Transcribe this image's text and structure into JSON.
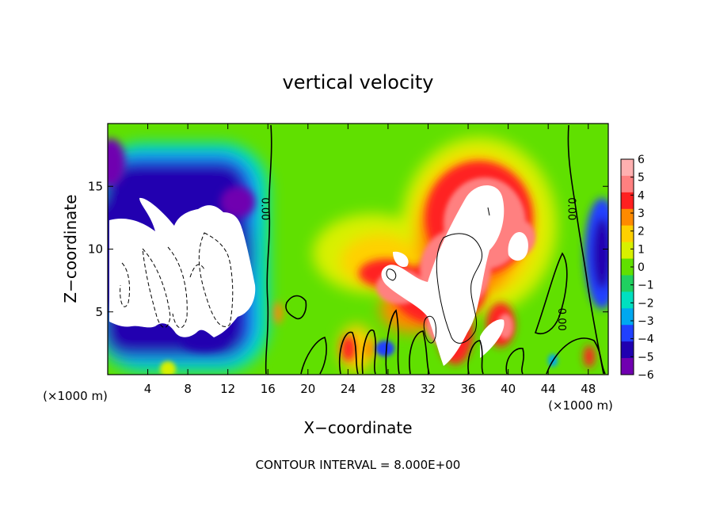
{
  "chart_data": {
    "type": "heatmap",
    "title": "vertical velocity",
    "xlabel": "X−coordinate",
    "ylabel": "Z−coordinate",
    "x_unit_label": "(×1000 m)",
    "footer": "CONTOUR INTERVAL = 8.000E+00",
    "x_ticks": [
      "4",
      "8",
      "12",
      "16",
      "20",
      "24",
      "28",
      "32",
      "36",
      "40",
      "44",
      "48"
    ],
    "x_tick_values": [
      4,
      8,
      12,
      16,
      20,
      24,
      28,
      32,
      36,
      40,
      44,
      48
    ],
    "y_ticks": [
      "5",
      "10",
      "15"
    ],
    "y_tick_values": [
      5,
      10,
      15
    ],
    "xlim": [
      0,
      50
    ],
    "ylim": [
      0,
      20
    ],
    "colorbar": {
      "labels": [
        "6",
        "5",
        "4",
        "3",
        "2",
        "1",
        "0",
        "−1",
        "−2",
        "−3",
        "−4",
        "−5",
        "−6"
      ],
      "colors": [
        "#ffb0b0",
        "#ff8080",
        "#ff2020",
        "#ff8a00",
        "#ffd000",
        "#d8f000",
        "#60e000",
        "#20d060",
        "#00e0c0",
        "#00a8f0",
        "#2040ff",
        "#2000b0",
        "#7000b0"
      ]
    },
    "contour_labels": [
      {
        "text": "0.00",
        "x": 15.4,
        "y": 13.2
      },
      {
        "text": "0.00",
        "x": 46.0,
        "y": 13.2
      },
      {
        "text": "0.00",
        "x": 45.0,
        "y": 4.4
      }
    ]
  }
}
